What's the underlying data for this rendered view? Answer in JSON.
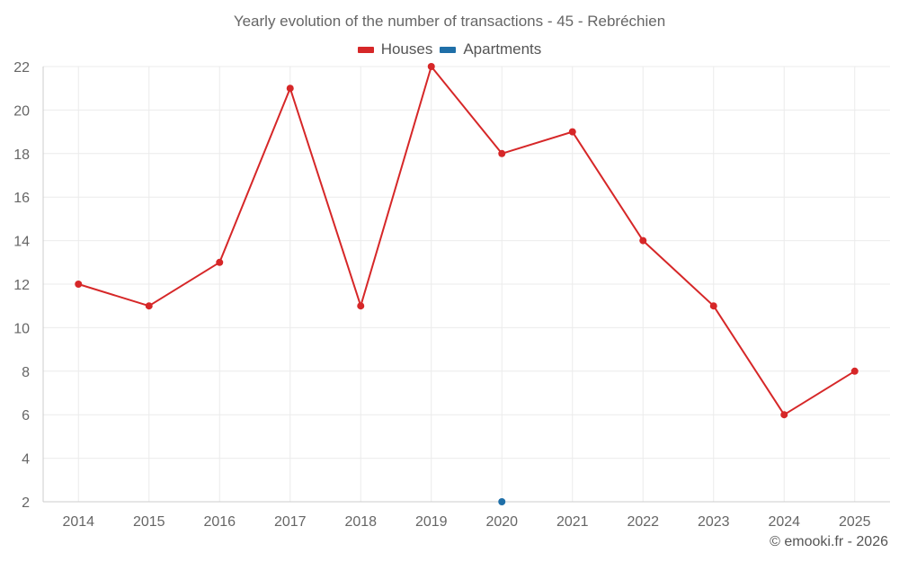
{
  "chart_data": {
    "type": "line",
    "title": "Yearly evolution of the number of transactions - 45 - Rebréchien",
    "categories": [
      "2014",
      "2015",
      "2016",
      "2017",
      "2018",
      "2019",
      "2020",
      "2021",
      "2022",
      "2023",
      "2024",
      "2025"
    ],
    "series": [
      {
        "name": "Houses",
        "color": "#d62728",
        "values": [
          12,
          11,
          13,
          21,
          11,
          22,
          18,
          19,
          14,
          11,
          6,
          8
        ]
      },
      {
        "name": "Apartments",
        "color": "#1f6fa8",
        "values": [
          null,
          null,
          null,
          null,
          null,
          null,
          2,
          null,
          null,
          null,
          null,
          null
        ]
      }
    ],
    "yticks": [
      "2",
      "4",
      "6",
      "8",
      "10",
      "12",
      "14",
      "16",
      "18",
      "20",
      "22"
    ],
    "ylim": [
      2,
      22
    ],
    "xlabel": "",
    "ylabel": "",
    "legend_position": "top-center",
    "grid": true
  },
  "footer": {
    "credit": "© emooki.fr - 2026"
  }
}
